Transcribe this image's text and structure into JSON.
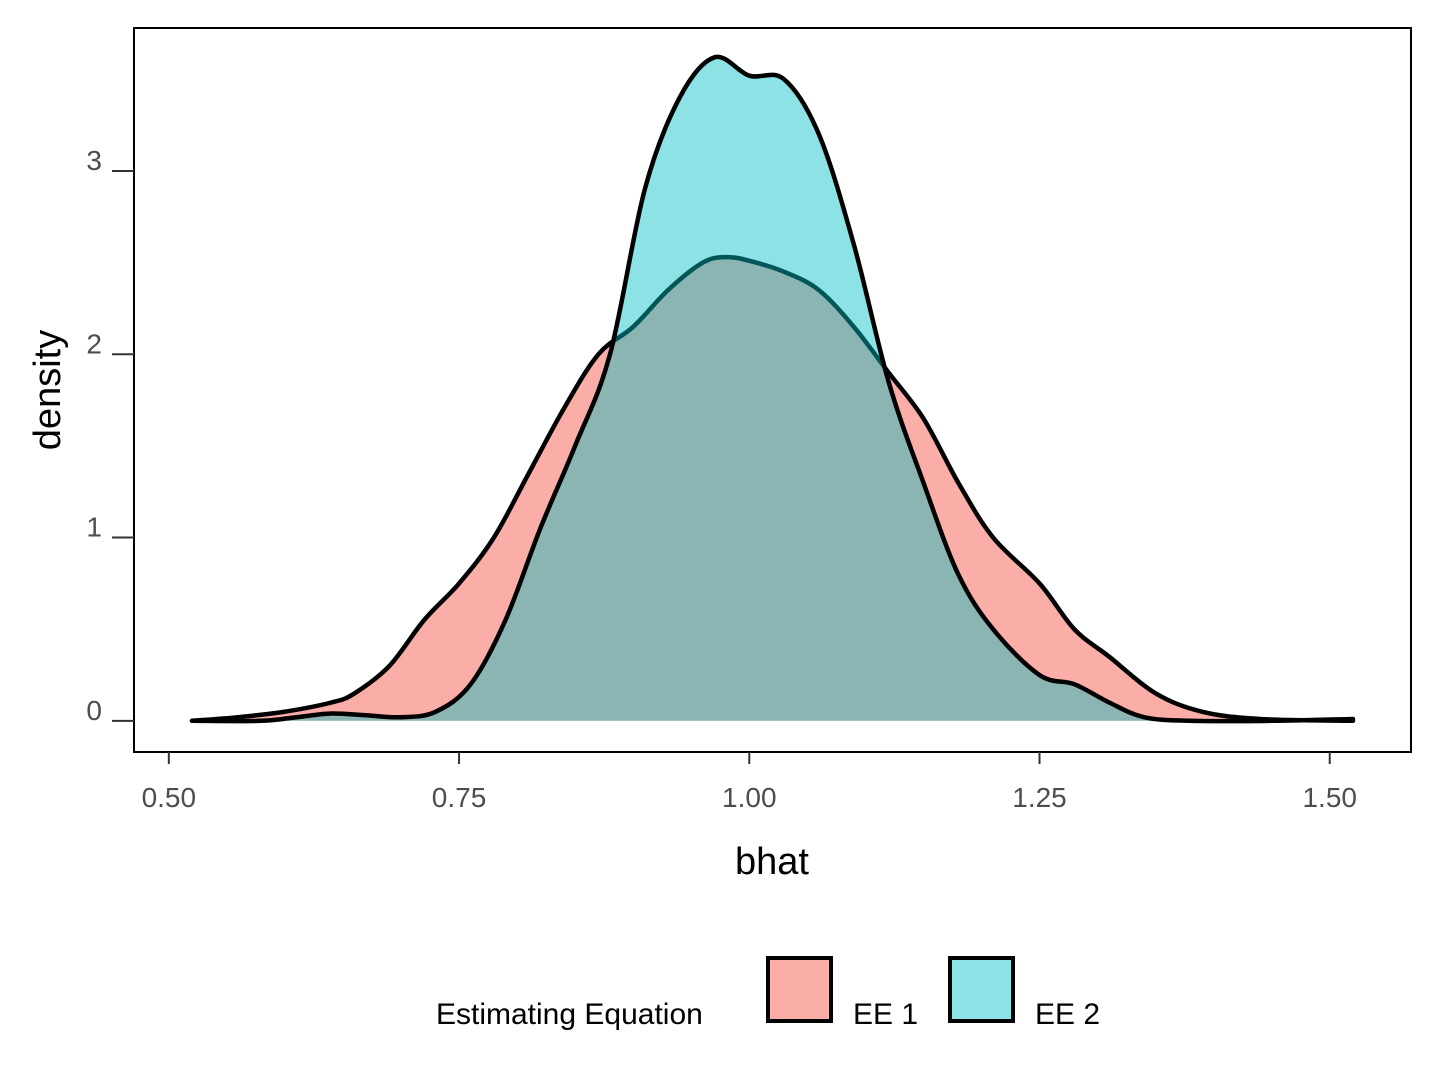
{
  "chart_data": {
    "type": "area",
    "subtype": "density",
    "xlabel": "bhat",
    "ylabel": "density",
    "xlim": [
      0.47,
      1.57
    ],
    "ylim": [
      -0.17,
      3.78
    ],
    "x_ticks": [
      0.5,
      0.75,
      1.0,
      1.25,
      1.5
    ],
    "x_tick_labels": [
      "0.50",
      "0.75",
      "1.00",
      "1.25",
      "1.50"
    ],
    "y_ticks": [
      0,
      1,
      2,
      3
    ],
    "y_tick_labels": [
      "0",
      "1",
      "2",
      "3"
    ],
    "grid": false,
    "legend": {
      "title": "Estimating Equation",
      "position": "bottom"
    },
    "series": [
      {
        "name": "EE 1",
        "fill": "#F8766D",
        "fill_opacity": 0.6,
        "points": [
          [
            0.52,
            0.0
          ],
          [
            0.56,
            0.02
          ],
          [
            0.6,
            0.05
          ],
          [
            0.64,
            0.1
          ],
          [
            0.66,
            0.15
          ],
          [
            0.69,
            0.3
          ],
          [
            0.72,
            0.55
          ],
          [
            0.75,
            0.75
          ],
          [
            0.78,
            1.0
          ],
          [
            0.81,
            1.35
          ],
          [
            0.84,
            1.7
          ],
          [
            0.87,
            2.0
          ],
          [
            0.9,
            2.15
          ],
          [
            0.93,
            2.35
          ],
          [
            0.96,
            2.5
          ],
          [
            0.98,
            2.53
          ],
          [
            1.0,
            2.51
          ],
          [
            1.03,
            2.45
          ],
          [
            1.06,
            2.35
          ],
          [
            1.09,
            2.15
          ],
          [
            1.12,
            1.9
          ],
          [
            1.15,
            1.65
          ],
          [
            1.18,
            1.3
          ],
          [
            1.21,
            1.0
          ],
          [
            1.25,
            0.75
          ],
          [
            1.28,
            0.5
          ],
          [
            1.31,
            0.35
          ],
          [
            1.35,
            0.15
          ],
          [
            1.39,
            0.05
          ],
          [
            1.44,
            0.01
          ],
          [
            1.52,
            0.0
          ]
        ]
      },
      {
        "name": "EE 2",
        "fill": "#00BFC4",
        "fill_opacity": 0.45,
        "points": [
          [
            0.52,
            0.0
          ],
          [
            0.58,
            0.0
          ],
          [
            0.61,
            0.02
          ],
          [
            0.64,
            0.04
          ],
          [
            0.67,
            0.03
          ],
          [
            0.7,
            0.02
          ],
          [
            0.73,
            0.05
          ],
          [
            0.76,
            0.2
          ],
          [
            0.79,
            0.55
          ],
          [
            0.82,
            1.05
          ],
          [
            0.85,
            1.5
          ],
          [
            0.88,
            2.0
          ],
          [
            0.91,
            2.9
          ],
          [
            0.94,
            3.4
          ],
          [
            0.97,
            3.62
          ],
          [
            1.0,
            3.52
          ],
          [
            1.03,
            3.5
          ],
          [
            1.06,
            3.2
          ],
          [
            1.09,
            2.6
          ],
          [
            1.12,
            1.85
          ],
          [
            1.15,
            1.3
          ],
          [
            1.18,
            0.8
          ],
          [
            1.21,
            0.5
          ],
          [
            1.25,
            0.25
          ],
          [
            1.28,
            0.2
          ],
          [
            1.31,
            0.1
          ],
          [
            1.34,
            0.02
          ],
          [
            1.38,
            0.0
          ],
          [
            1.45,
            0.0
          ],
          [
            1.52,
            0.01
          ]
        ]
      }
    ]
  }
}
